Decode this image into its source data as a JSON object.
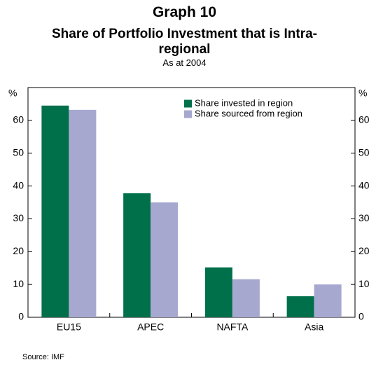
{
  "chart_data": {
    "type": "bar",
    "title": "Graph 10",
    "subtitle": "Share of Portfolio Investment that is Intra-regional",
    "note": "As at 2004",
    "y_label": "%",
    "y2_label": "%",
    "source": "Source: IMF",
    "categories": [
      "EU15",
      "APEC",
      "NAFTA",
      "Asia"
    ],
    "series": [
      {
        "name": "Share invested in region",
        "color": "#00704a",
        "values": [
          64.5,
          37.8,
          15.2,
          6.4
        ]
      },
      {
        "name": "Share sourced from region",
        "color": "#a6a8d0",
        "values": [
          63.2,
          35.0,
          11.6,
          10.0
        ]
      }
    ],
    "ylim": [
      0,
      70
    ],
    "yticks": [
      0,
      10,
      20,
      30,
      40,
      50,
      60
    ],
    "y2lim": [
      0,
      70
    ],
    "y2ticks": [
      0,
      10,
      20,
      30,
      40,
      50,
      60
    ],
    "legend": "top-right"
  }
}
